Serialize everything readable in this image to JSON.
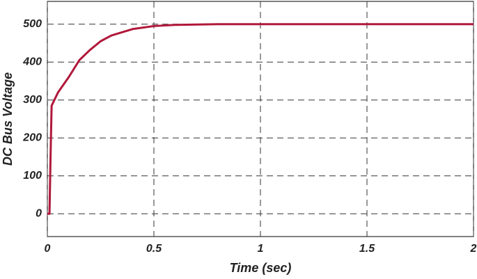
{
  "chart_data": {
    "type": "line",
    "x_label": "Time (sec)",
    "y_label": "DC Bus Voltage",
    "x": [
      0,
      0.01,
      0.015,
      0.02,
      0.05,
      0.1,
      0.15,
      0.2,
      0.25,
      0.3,
      0.4,
      0.5,
      0.6,
      0.8,
      1.0,
      1.5,
      2.0
    ],
    "series": [
      {
        "name": "DC Bus Voltage",
        "color": "#b0183a",
        "values": [
          0,
          0,
          150,
          285,
          320,
          360,
          405,
          432,
          455,
          470,
          487,
          495,
          498,
          500,
          500,
          500,
          500
        ]
      }
    ],
    "xlim": [
      0,
      2
    ],
    "xticks": [
      0,
      0.5,
      1,
      1.5,
      2
    ],
    "ylim": [
      -60,
      560
    ],
    "yticks": [
      0,
      100,
      200,
      300,
      400,
      500
    ],
    "grid": true
  }
}
